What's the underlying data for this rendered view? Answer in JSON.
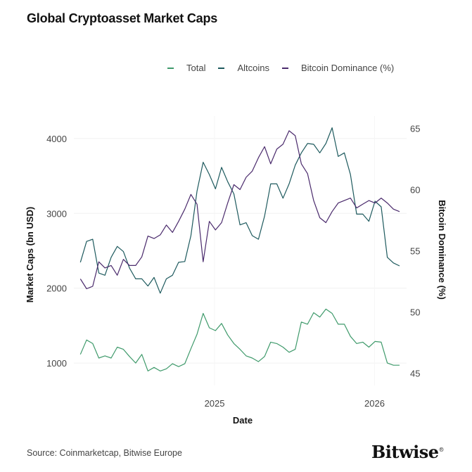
{
  "title": "Global Cryptoasset Market Caps",
  "source": "Source: Coinmarketcap, Bitwise Europe",
  "logo": "Bitwise",
  "chart_data": {
    "type": "line",
    "title": "Global Cryptoasset Market Caps",
    "xlabel": "Date",
    "ylabel": "Market Caps (bn USD)",
    "y2label": "Bitcoin Dominance (%)",
    "legend_position": "top",
    "grid": true,
    "xticks": [
      "2025",
      "2026"
    ],
    "xtick_dates": [
      "2025-01-01",
      "2026-01-01"
    ],
    "yticks": [
      1000,
      2000,
      3000,
      4000
    ],
    "y2ticks": [
      45,
      50,
      55,
      60,
      65
    ],
    "ylim": [
      700,
      4300
    ],
    "y2lim": [
      44,
      66
    ],
    "xlim": [
      "2024-02-15",
      "2026-03-15"
    ],
    "x": [
      "2024-03-01",
      "2024-03-15",
      "2024-03-29",
      "2024-04-12",
      "2024-04-26",
      "2024-05-10",
      "2024-05-24",
      "2024-06-07",
      "2024-06-21",
      "2024-07-05",
      "2024-07-19",
      "2024-08-02",
      "2024-08-16",
      "2024-08-30",
      "2024-09-13",
      "2024-09-27",
      "2024-10-11",
      "2024-10-25",
      "2024-11-08",
      "2024-11-22",
      "2024-12-06",
      "2024-12-20",
      "2025-01-03",
      "2025-01-17",
      "2025-01-31",
      "2025-02-14",
      "2025-02-28",
      "2025-03-14",
      "2025-03-28",
      "2025-04-11",
      "2025-04-25",
      "2025-05-09",
      "2025-05-23",
      "2025-06-06",
      "2025-06-20",
      "2025-07-04",
      "2025-07-18",
      "2025-08-01",
      "2025-08-15",
      "2025-08-29",
      "2025-09-12",
      "2025-09-26",
      "2025-10-10",
      "2025-10-24",
      "2025-11-07",
      "2025-11-21",
      "2025-12-05",
      "2025-12-19",
      "2026-01-02",
      "2026-01-16",
      "2026-01-30",
      "2026-02-13",
      "2026-02-27"
    ],
    "series": [
      {
        "name": "Total",
        "color": "#3f9a6b",
        "axis": "left",
        "values": [
          1115,
          1308,
          1260,
          1067,
          1096,
          1067,
          1212,
          1183,
          1087,
          1000,
          1115,
          894,
          942,
          894,
          923,
          990,
          952,
          990,
          1192,
          1385,
          1663,
          1471,
          1433,
          1529,
          1375,
          1260,
          1183,
          1096,
          1067,
          1019,
          1087,
          1279,
          1260,
          1212,
          1144,
          1183,
          1548,
          1519,
          1673,
          1615,
          1721,
          1663,
          1519,
          1519,
          1356,
          1260,
          1279,
          1212,
          1288,
          1279,
          1000,
          971,
          971
        ]
      },
      {
        "name": "Altcoins",
        "color": "#1e5a5e",
        "axis": "left",
        "values": [
          2346,
          2625,
          2654,
          2202,
          2173,
          2413,
          2558,
          2490,
          2269,
          2125,
          2125,
          2029,
          2144,
          1933,
          2125,
          2173,
          2346,
          2356,
          2702,
          3298,
          3683,
          3519,
          3327,
          3615,
          3423,
          3260,
          2846,
          2875,
          2702,
          2654,
          2962,
          3394,
          3394,
          3202,
          3394,
          3644,
          3808,
          3933,
          3923,
          3808,
          3933,
          4144,
          3760,
          3808,
          3519,
          2990,
          2990,
          2894,
          3163,
          3087,
          2413,
          2337,
          2298
        ]
      },
      {
        "name": "Bitcoin Dominance (%)",
        "color": "#4a2a6c",
        "axis": "right",
        "values": [
          52.7,
          51.9,
          52.1,
          54.1,
          53.6,
          53.8,
          53.0,
          54.3,
          53.8,
          53.8,
          54.5,
          56.2,
          56.0,
          56.3,
          57.1,
          56.5,
          57.4,
          58.4,
          59.6,
          58.8,
          54.1,
          57.4,
          56.7,
          57.3,
          58.9,
          60.4,
          60.0,
          61.0,
          61.5,
          62.6,
          63.5,
          62.1,
          63.3,
          63.7,
          64.8,
          64.4,
          62.1,
          61.3,
          59.1,
          57.7,
          57.3,
          58.2,
          58.9,
          59.1,
          59.3,
          58.5,
          58.8,
          59.1,
          58.9,
          59.3,
          58.9,
          58.4,
          58.2
        ]
      }
    ]
  }
}
